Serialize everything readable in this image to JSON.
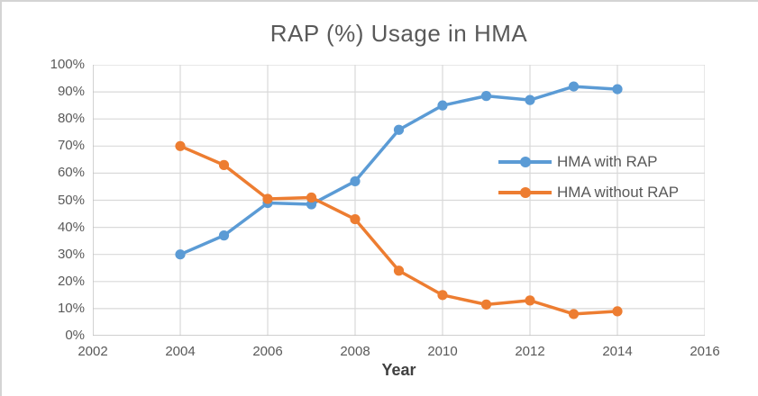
{
  "title": "RAP (%) Usage in HMA",
  "colors": {
    "series_with_rap": "#5B9BD5",
    "series_without_rap": "#ED7D31",
    "gridline": "#D9D9D9",
    "axis_line": "#BFBFBF",
    "text": "#595959"
  },
  "chart_data": {
    "type": "line",
    "title": "RAP (%) Usage in HMA",
    "xlabel": "Year",
    "ylabel": "",
    "xlim": [
      2002,
      2016
    ],
    "ylim": [
      0,
      100
    ],
    "grid": true,
    "legend_position": "center-right",
    "x_ticks": [
      "2002",
      "2004",
      "2006",
      "2008",
      "2010",
      "2012",
      "2014",
      "2016"
    ],
    "y_ticks_top_to_bottom": [
      "100%",
      "90%",
      "80%",
      "70%",
      "60%",
      "50%",
      "40%",
      "30%",
      "20%",
      "10%",
      "0%"
    ],
    "x": [
      2004,
      2005,
      2006,
      2007,
      2008,
      2009,
      2010,
      2011,
      2012,
      2013,
      2014
    ],
    "series": [
      {
        "name": "HMA with RAP",
        "color": "#5B9BD5",
        "values": [
          30,
          37,
          49,
          48.5,
          57,
          76,
          85,
          88.5,
          87,
          92,
          91
        ]
      },
      {
        "name": "HMA without RAP",
        "color": "#ED7D31",
        "values": [
          70,
          63,
          50.5,
          51,
          43,
          24,
          15,
          11.5,
          13,
          8,
          9
        ]
      }
    ]
  }
}
